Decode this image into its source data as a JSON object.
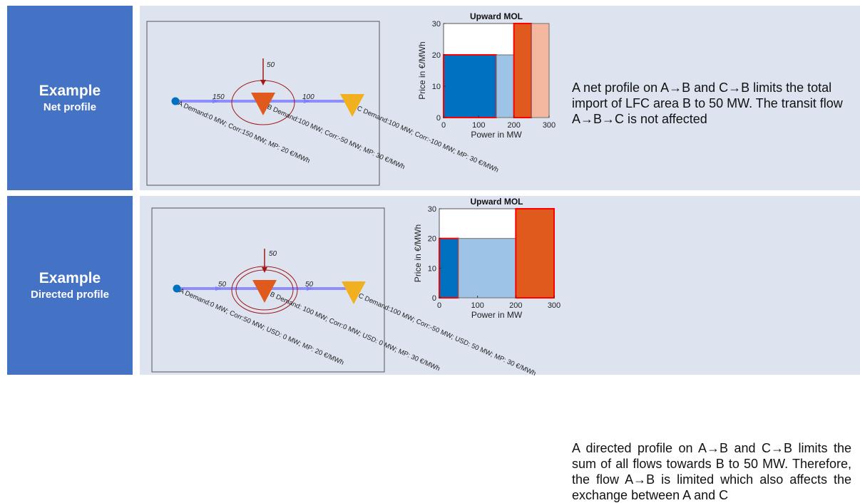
{
  "examples": [
    {
      "label_title": "Example",
      "label_sub": "Net profile",
      "description": "A net profile on A→B and C→B limits the total import of LFC area B to 50 MW. The transit flow A→B→C is not affected",
      "network": {
        "injection": "50",
        "flow_ab": "150",
        "flow_bc": "100",
        "node_a": "A Demand:0 MW; Corr:150 MW; MP: 20 €/MWh",
        "node_b": "B Demand:100 MW; Corr:-50 MW; MP: 30 €/MWh",
        "node_c": "C Demand:100 MW; Corr:-100 MW; MP: 30 €/MWh"
      }
    },
    {
      "label_title": "Example",
      "label_sub": "Directed profile",
      "description": "A directed profile on A→B and C→B limits the sum of all flows towards B to 50 MW. Therefore, the flow A→B is limited which also affects the exchange between A and C",
      "network": {
        "injection": "50",
        "flow_ab": "50",
        "flow_bc": "50",
        "node_a": "A Demand:0 MW; Corr:50 MW; USD: 0 MW; MP: 20 €/MWh",
        "node_b": "B Demand: 100 MW; Corr:0 MW; USD: 0 MW; MP: 30 €/MWh",
        "node_c": "C Demand:100 MW; Corr:-50 MW; USD: 50 MW; MP: 30 €/MWh"
      }
    }
  ],
  "colors": {
    "label_bg": "#4472c4",
    "content_bg": "#dde4f0",
    "line_blue": "#8080ff",
    "node_a": "#0070c0",
    "node_b": "#e05a1e",
    "node_c": "#f0b020",
    "ring": "#a01818",
    "bar_dark_blue": "#0070c0",
    "bar_light_blue": "#9dc3e6",
    "bar_orange": "#e05a1e",
    "bar_peach": "#f4b8a0",
    "bar_outline_red": "#ff0000"
  },
  "chart_data": [
    {
      "type": "bar",
      "title": "Upward MOL",
      "xlabel": "Power in MW",
      "ylabel": "Price in €/MWh",
      "xlim": [
        0,
        300
      ],
      "ylim": [
        0,
        30
      ],
      "xticks": [
        "0",
        "100",
        "200",
        "300"
      ],
      "yticks": [
        "0",
        "10",
        "20",
        "30"
      ],
      "bars": [
        {
          "x0": 0,
          "x1": 150,
          "y": 20,
          "color": "#0070c0",
          "outline": "#ff0000"
        },
        {
          "x0": 150,
          "x1": 200,
          "y": 20,
          "color": "#9dc3e6",
          "outline": "#707070"
        },
        {
          "x0": 200,
          "x1": 250,
          "y": 30,
          "color": "#e05a1e",
          "outline": "#ff0000"
        },
        {
          "x0": 250,
          "x1": 300,
          "y": 30,
          "color": "#f4b8a0",
          "outline": "#707070"
        }
      ]
    },
    {
      "type": "bar",
      "title": "Upward MOL",
      "xlabel": "Power in MW",
      "ylabel": "Price in €/MWh",
      "xlim": [
        0,
        300
      ],
      "ylim": [
        0,
        30
      ],
      "xticks": [
        "0",
        "100",
        "200",
        "300"
      ],
      "yticks": [
        "0",
        "10",
        "20",
        "30"
      ],
      "bars": [
        {
          "x0": 0,
          "x1": 50,
          "y": 20,
          "color": "#0070c0",
          "outline": "#ff0000"
        },
        {
          "x0": 50,
          "x1": 200,
          "y": 20,
          "color": "#9dc3e6",
          "outline": "#707070"
        },
        {
          "x0": 200,
          "x1": 300,
          "y": 30,
          "color": "#e05a1e",
          "outline": "#ff0000"
        }
      ]
    }
  ]
}
